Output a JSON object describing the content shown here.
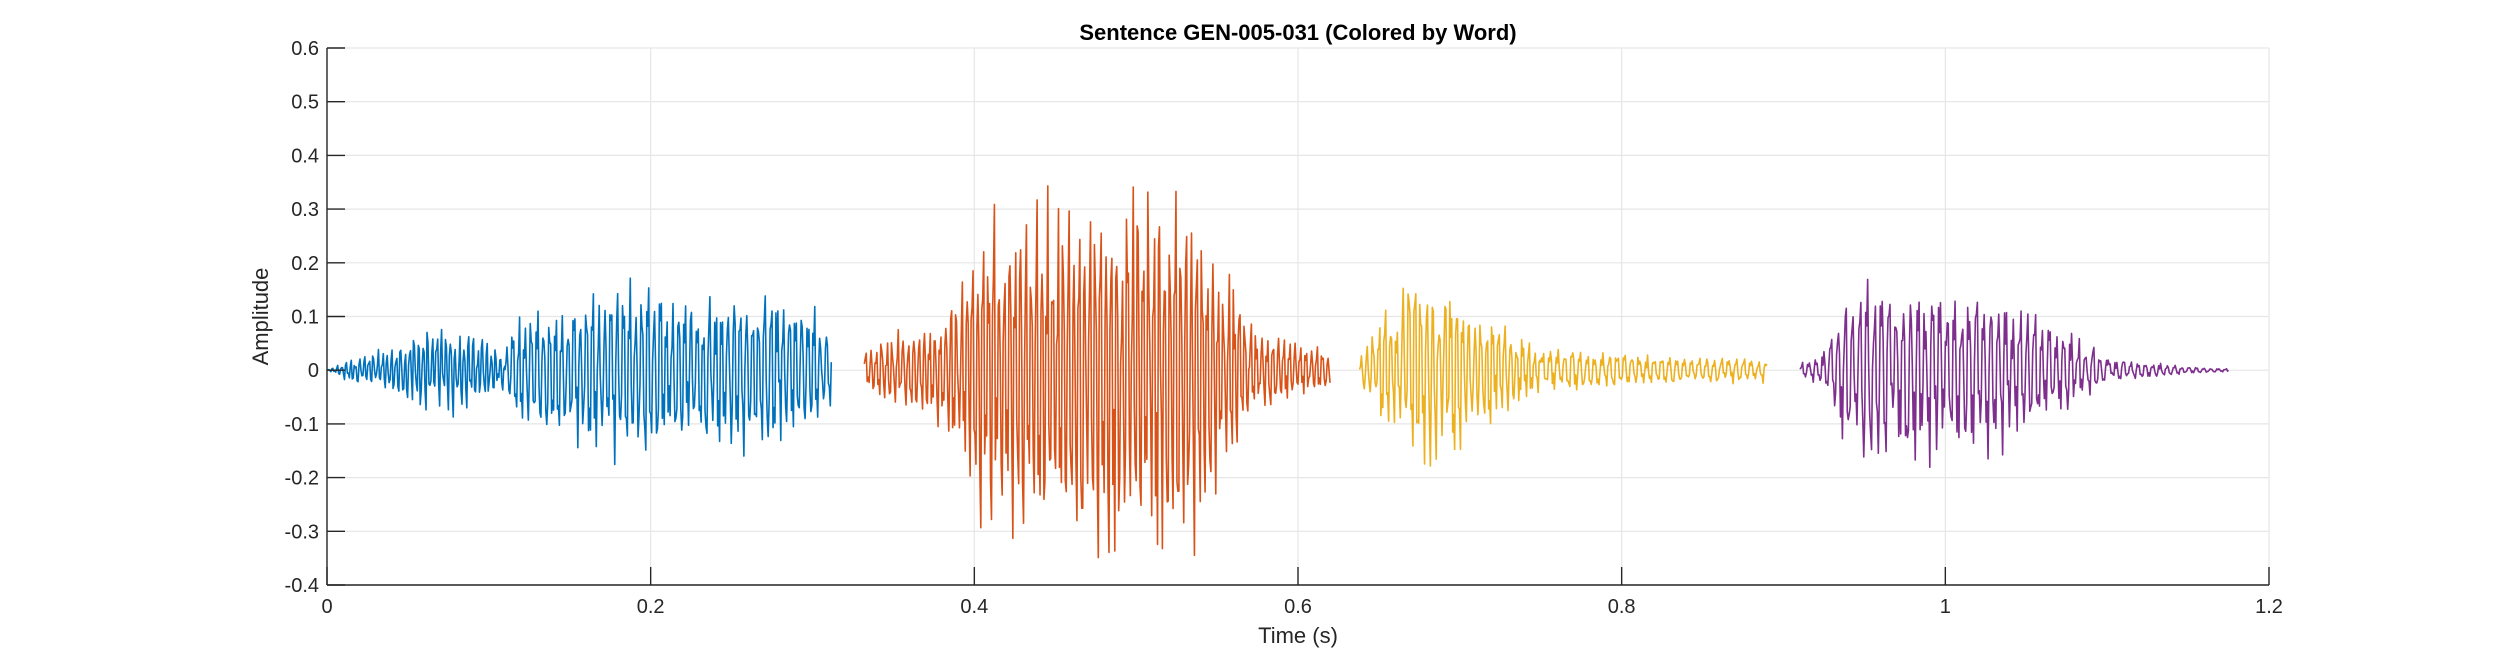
{
  "chart_data": {
    "type": "line",
    "title": "Sentence GEN-005-031 (Colored by Word)",
    "xlabel": "Time (s)",
    "ylabel": "Amplitude",
    "xlim": [
      0,
      1.2
    ],
    "ylim": [
      -0.4,
      0.6
    ],
    "x_ticks": [
      0,
      0.2,
      0.4,
      0.6,
      0.8,
      1,
      1.2
    ],
    "x_tick_labels": [
      "0",
      "0.2",
      "0.4",
      "0.6",
      "0.8",
      "1",
      "1.2"
    ],
    "y_ticks": [
      -0.4,
      -0.3,
      -0.2,
      -0.1,
      0,
      0.1,
      0.2,
      0.3,
      0.4,
      0.5,
      0.6
    ],
    "y_tick_labels": [
      "-0.4",
      "-0.3",
      "-0.2",
      "-0.1",
      "0",
      "0.1",
      "0.2",
      "0.3",
      "0.4",
      "0.5",
      "0.6"
    ],
    "grid": true,
    "series": [
      {
        "color": "#0072BD",
        "sample_step": 0.0006,
        "segments": [
          {
            "x_start": 0.0,
            "x_end": 0.11,
            "period": 0.0028,
            "envelope": [
              [
                0.0,
                0.0
              ],
              [
                0.01,
                0.02
              ],
              [
                0.03,
                0.05
              ],
              [
                0.06,
                0.1
              ],
              [
                0.075,
                0.11
              ],
              [
                0.1,
                0.07
              ],
              [
                0.11,
                0.05
              ]
            ]
          },
          {
            "x_start": 0.11,
            "x_end": 0.312,
            "period": 0.0038,
            "envelope": [
              [
                0.11,
                0.04
              ],
              [
                0.115,
                0.12
              ],
              [
                0.14,
                0.16
              ],
              [
                0.17,
                0.18
              ],
              [
                0.22,
                0.2
              ],
              [
                0.27,
                0.18
              ],
              [
                0.3,
                0.16
              ],
              [
                0.312,
                0.09
              ]
            ]
          }
        ]
      },
      {
        "color": "#D95319",
        "sample_step": 0.0006,
        "segments": [
          {
            "x_start": 0.332,
            "x_end": 0.57,
            "period": 0.0033,
            "envelope": [
              [
                0.332,
                0.05
              ],
              [
                0.35,
                0.08
              ],
              [
                0.38,
                0.12
              ],
              [
                0.4,
                0.33
              ],
              [
                0.45,
                0.4
              ],
              [
                0.5,
                0.46
              ],
              [
                0.52,
                0.47
              ],
              [
                0.54,
                0.4
              ],
              [
                0.56,
                0.22
              ],
              [
                0.57,
                0.12
              ]
            ]
          },
          {
            "x_start": 0.57,
            "x_end": 0.62,
            "period": 0.0034,
            "envelope": [
              [
                0.57,
                0.11
              ],
              [
                0.59,
                0.08
              ],
              [
                0.62,
                0.05
              ]
            ]
          }
        ]
      },
      {
        "color": "#EDB120",
        "sample_step": 0.0006,
        "segments": [
          {
            "x_start": 0.638,
            "x_end": 0.75,
            "period": 0.0037,
            "envelope": [
              [
                0.638,
                0.04
              ],
              [
                0.65,
                0.12
              ],
              [
                0.67,
                0.22
              ],
              [
                0.69,
                0.2
              ],
              [
                0.72,
                0.12
              ],
              [
                0.75,
                0.05
              ]
            ]
          },
          {
            "x_start": 0.75,
            "x_end": 0.89,
            "period": 0.0046,
            "envelope": [
              [
                0.75,
                0.05
              ],
              [
                0.8,
                0.04
              ],
              [
                0.85,
                0.03
              ],
              [
                0.89,
                0.025
              ]
            ]
          }
        ]
      },
      {
        "color": "#7E2F8E",
        "sample_step": 0.0006,
        "segments": [
          {
            "x_start": 0.91,
            "x_end": 1.1,
            "period": 0.0045,
            "envelope": [
              [
                0.91,
                0.02
              ],
              [
                0.925,
                0.04
              ],
              [
                0.94,
                0.2
              ],
              [
                0.96,
                0.23
              ],
              [
                1.0,
                0.2
              ],
              [
                1.03,
                0.2
              ],
              [
                1.06,
                0.12
              ],
              [
                1.09,
                0.06
              ],
              [
                1.1,
                0.04
              ]
            ]
          },
          {
            "x_start": 1.1,
            "x_end": 1.175,
            "period": 0.0045,
            "envelope": [
              [
                1.1,
                0.03
              ],
              [
                1.13,
                0.015
              ],
              [
                1.16,
                0.006
              ],
              [
                1.175,
                0.003
              ]
            ]
          }
        ]
      }
    ]
  }
}
